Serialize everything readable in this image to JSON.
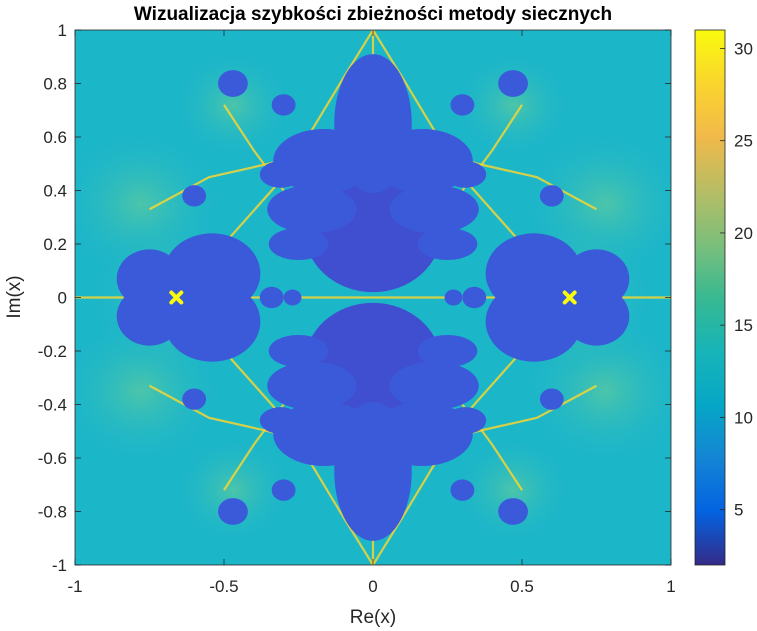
{
  "chart_data": {
    "type": "heatmap",
    "title": "Wizualizacja szybkości zbieżności metody siecznych",
    "xlabel": "Re(x)",
    "ylabel": "Im(x)",
    "xlim": [
      -1,
      1
    ],
    "ylim": [
      -1,
      1
    ],
    "x_ticks": [
      -1,
      -0.5,
      0,
      0.5,
      1
    ],
    "x_tick_labels": [
      "-1",
      "-0.5",
      "0",
      "0.5",
      "1"
    ],
    "y_ticks": [
      1,
      0.8,
      0.6,
      0.4,
      0.2,
      0,
      -0.2,
      -0.4,
      -0.6,
      -0.8,
      -1
    ],
    "y_tick_labels": [
      "1",
      "0.8",
      "0.6",
      "0.4",
      "0.2",
      "0",
      "-0.2",
      "-0.4",
      "-0.6",
      "-0.8",
      "-1"
    ],
    "colorbar": {
      "range": [
        2,
        31
      ],
      "ticks": [
        5,
        10,
        15,
        20,
        25,
        30
      ],
      "tick_labels": [
        "5",
        "10",
        "15",
        "20",
        "25",
        "30"
      ],
      "colormap": "parula"
    },
    "roots": [
      {
        "re": -0.66,
        "im": 0
      },
      {
        "re": 0.66,
        "im": 0
      }
    ],
    "regions": [
      {
        "kind": "circle",
        "cx": 0,
        "cy": 0.25,
        "r": 0.23,
        "value": 5
      },
      {
        "kind": "circle",
        "cx": 0,
        "cy": -0.25,
        "r": 0.23,
        "value": 5
      }
    ],
    "colors": {
      "background": "#1cb6c9",
      "basin": "#3a5ad9",
      "basin_dark": "#3f4fd0",
      "boundary": "#f5d632",
      "halo": "#37c3b0",
      "root": "#f9fb0e"
    }
  }
}
